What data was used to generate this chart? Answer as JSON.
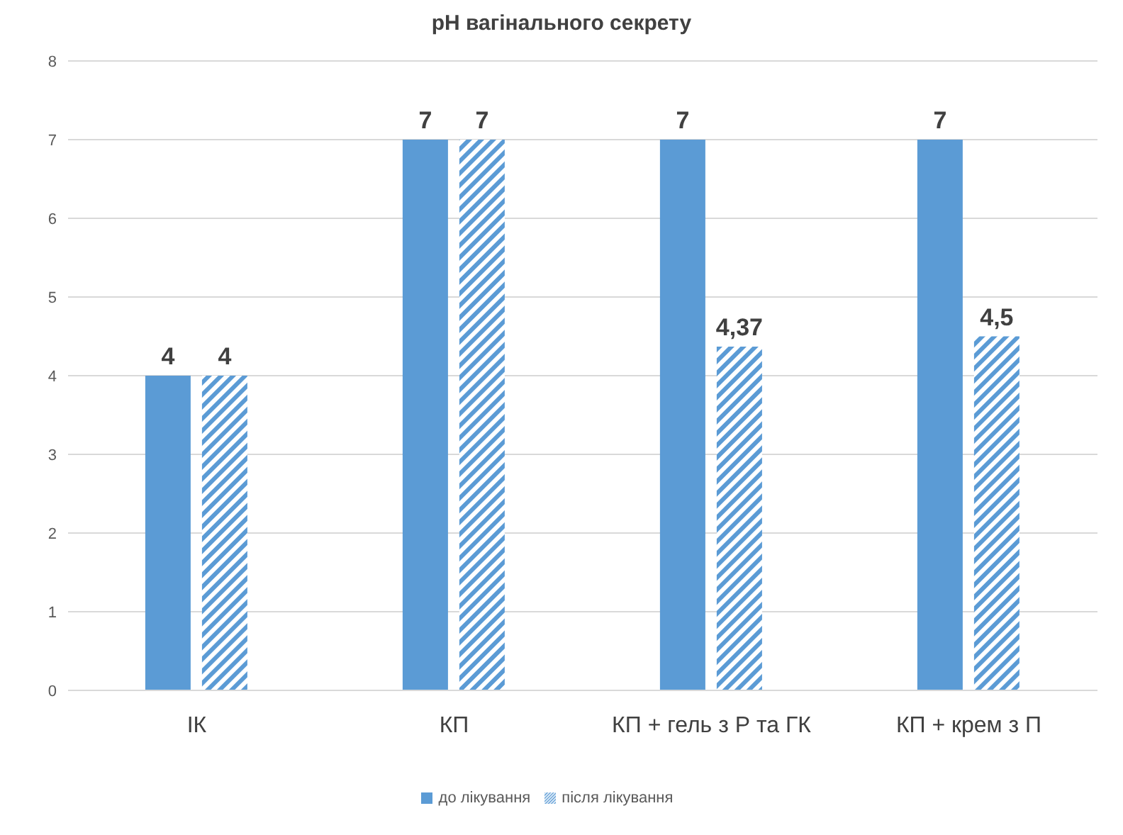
{
  "chart_data": {
    "type": "bar",
    "title": "pH вагінального секрету",
    "categories": [
      "ІК",
      "КП",
      "КП + гель з Р та ГК",
      "КП + крем з П"
    ],
    "series": [
      {
        "name": "до лікування",
        "color": "#5b9bd5",
        "values": [
          4,
          7,
          7,
          7
        ],
        "value_labels": [
          "4",
          "7",
          "7",
          "7"
        ]
      },
      {
        "name": "після лікування",
        "color": "#5b9bd5",
        "values": [
          4,
          7,
          4.37,
          4.5
        ],
        "value_labels": [
          "4",
          "7",
          "4,37",
          "4,5"
        ]
      }
    ],
    "ylim": [
      0,
      8
    ],
    "yticks": [
      0,
      1,
      2,
      3,
      4,
      5,
      6,
      7,
      8
    ],
    "grid": "y",
    "legend": "bottom"
  }
}
